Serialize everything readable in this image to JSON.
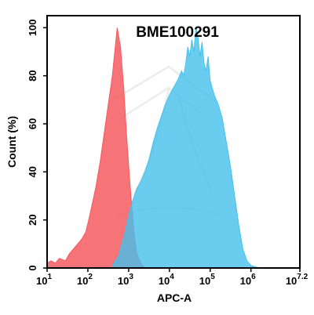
{
  "chart_data": {
    "type": "area",
    "title": "BME100291",
    "xlabel": "APC-A",
    "ylabel": "Count  (%)",
    "x_scale": "log10",
    "xlim": [
      1,
      7.2
    ],
    "ylim": [
      0,
      105
    ],
    "x_ticks": [
      {
        "base": "10",
        "exp": "1",
        "value": 1
      },
      {
        "base": "10",
        "exp": "2",
        "value": 2
      },
      {
        "base": "10",
        "exp": "3",
        "value": 3
      },
      {
        "base": "10",
        "exp": "4",
        "value": 4
      },
      {
        "base": "10",
        "exp": "5",
        "value": 5
      },
      {
        "base": "10",
        "exp": "6",
        "value": 6
      },
      {
        "base": "10",
        "exp": "7.2",
        "value": 7.2
      }
    ],
    "y_ticks": [
      "0",
      "20",
      "40",
      "60",
      "80",
      "100"
    ],
    "series": [
      {
        "color": "#f55a60",
        "fill_opacity": 0.85,
        "x": [
          1.0,
          1.1,
          1.2,
          1.3,
          1.45,
          1.55,
          1.65,
          1.75,
          1.85,
          1.95,
          2.02,
          2.1,
          2.2,
          2.3,
          2.4,
          2.5,
          2.6,
          2.66,
          2.72,
          2.8,
          2.88,
          2.95,
          3.02,
          3.08,
          3.14,
          3.2,
          3.3,
          3.4
        ],
        "y": [
          2,
          3,
          2,
          4,
          3,
          6,
          8,
          10,
          12,
          15,
          20,
          26,
          34,
          44,
          56,
          68,
          80,
          90,
          100,
          92,
          75,
          55,
          38,
          25,
          14,
          6,
          2,
          0
        ]
      },
      {
        "color": "#45c0ec",
        "fill_opacity": 0.8,
        "x": [
          2.6,
          2.75,
          2.9,
          3.0,
          3.1,
          3.2,
          3.3,
          3.4,
          3.5,
          3.6,
          3.7,
          3.8,
          3.9,
          4.0,
          4.1,
          4.2,
          4.3,
          4.35,
          4.4,
          4.45,
          4.5,
          4.55,
          4.6,
          4.65,
          4.7,
          4.75,
          4.8,
          4.85,
          4.9,
          4.95,
          5.0,
          5.05,
          5.1,
          5.2,
          5.3,
          5.4,
          5.5,
          5.6,
          5.7,
          5.8,
          5.9,
          6.0,
          6.1,
          6.2
        ],
        "y": [
          1,
          5,
          14,
          22,
          28,
          33,
          36,
          40,
          45,
          52,
          58,
          63,
          68,
          72,
          75,
          78,
          82,
          80,
          85,
          92,
          88,
          95,
          90,
          100,
          96,
          88,
          94,
          85,
          82,
          88,
          78,
          75,
          72,
          68,
          62,
          52,
          42,
          30,
          18,
          8,
          3,
          1,
          0.5,
          0
        ]
      }
    ]
  }
}
